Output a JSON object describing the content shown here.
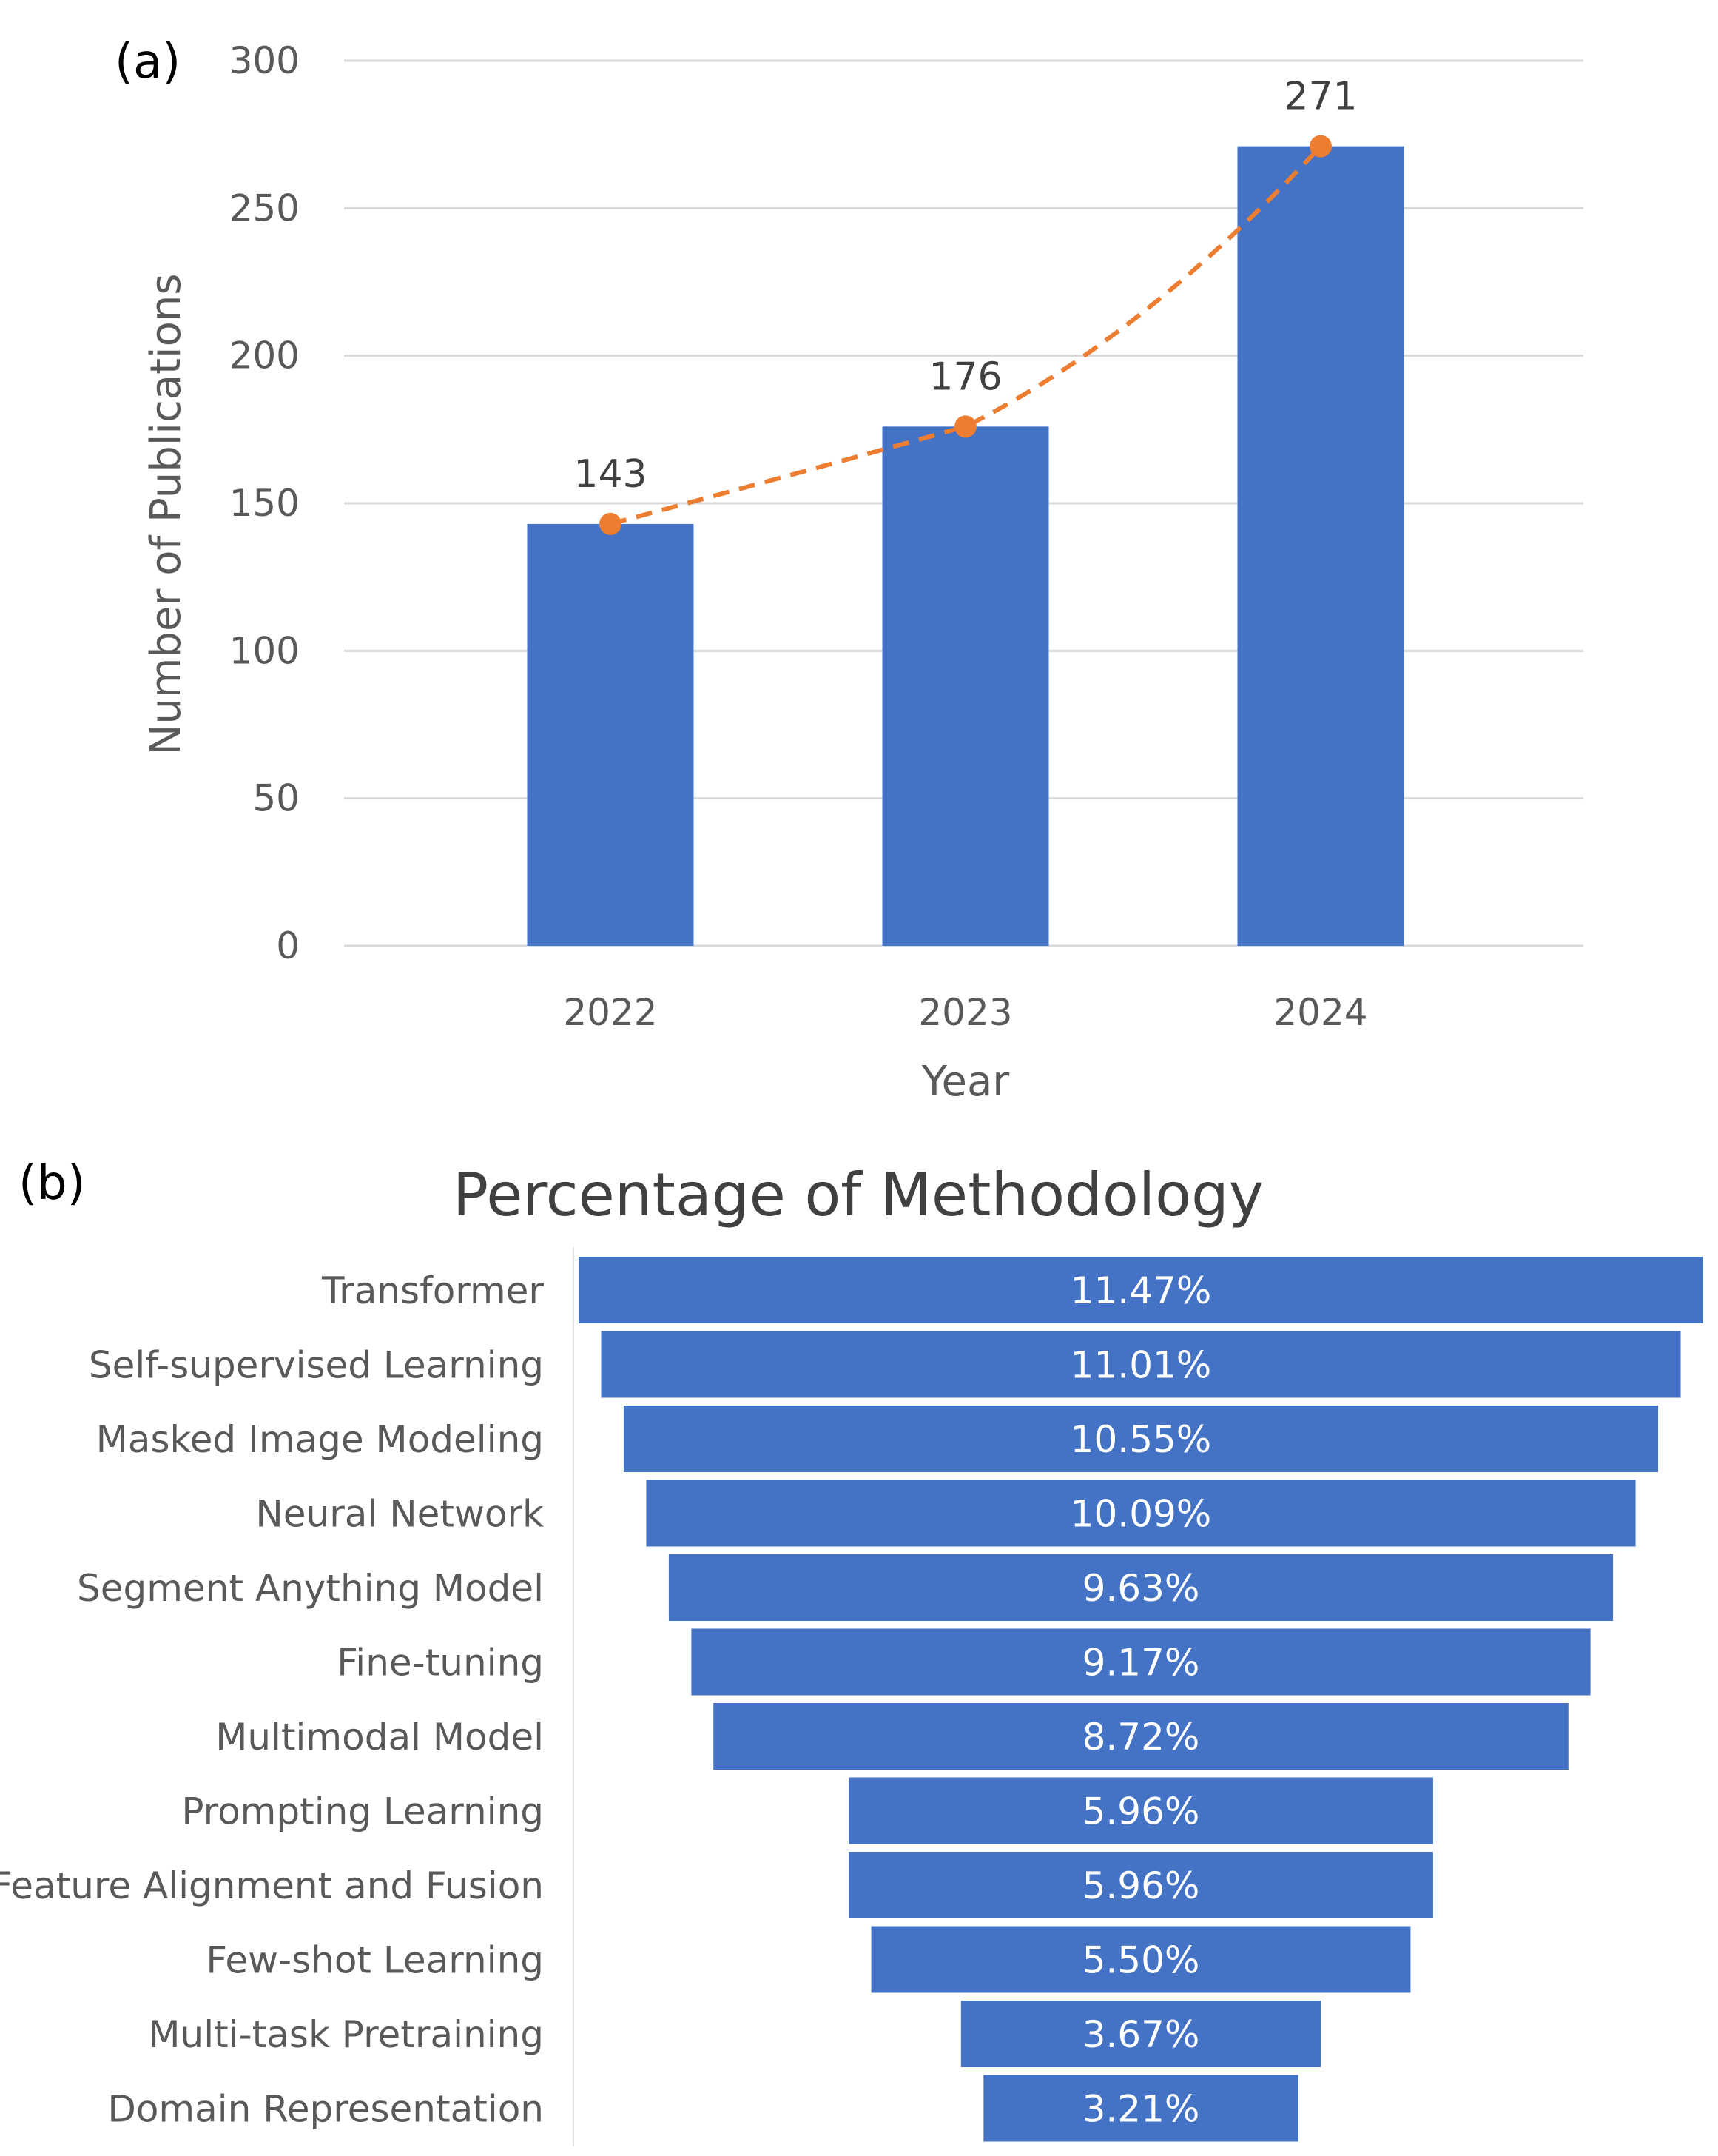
{
  "chart_data": [
    {
      "type": "bar",
      "panel_label": "(a)",
      "categories": [
        "2022",
        "2023",
        "2024"
      ],
      "values": [
        143,
        176,
        271
      ],
      "data_labels": [
        "143",
        "176",
        "271"
      ],
      "trend_line": {
        "style": "dashed",
        "marker": "circle",
        "values": [
          143,
          176,
          271
        ]
      },
      "title": "",
      "xlabel": "Year",
      "ylabel": "Number of Publications",
      "ylim": [
        0,
        300
      ],
      "yticks": [
        "0",
        "50",
        "100",
        "150",
        "200",
        "250",
        "300"
      ],
      "grid": true,
      "colors": {
        "bar": "#4472C4",
        "trend": "#ED7D31",
        "grid": "#D9D9D9"
      }
    },
    {
      "type": "bar",
      "orientation": "horizontal-funnel",
      "panel_label": "(b)",
      "title": "Percentage of Methodology",
      "categories": [
        "Transformer",
        "Self-supervised Learning",
        "Masked Image Modeling",
        "Neural Network",
        "Segment Anything Model",
        "Fine-tuning",
        "Multimodal Model",
        "Prompting Learning",
        "Feature Alignment and Fusion",
        "Few-shot Learning",
        "Multi-task Pretraining",
        "Domain Representation"
      ],
      "values": [
        11.47,
        11.01,
        10.55,
        10.09,
        9.63,
        9.17,
        8.72,
        5.96,
        5.96,
        5.5,
        3.67,
        3.21
      ],
      "data_labels": [
        "11.47%",
        "11.01%",
        "10.55%",
        "10.09%",
        "9.63%",
        "9.17%",
        "8.72%",
        "5.96%",
        "5.96%",
        "5.50%",
        "3.67%",
        "3.21%"
      ],
      "colors": {
        "bar": "#4472C4",
        "label": "#FFFFFF"
      }
    }
  ]
}
